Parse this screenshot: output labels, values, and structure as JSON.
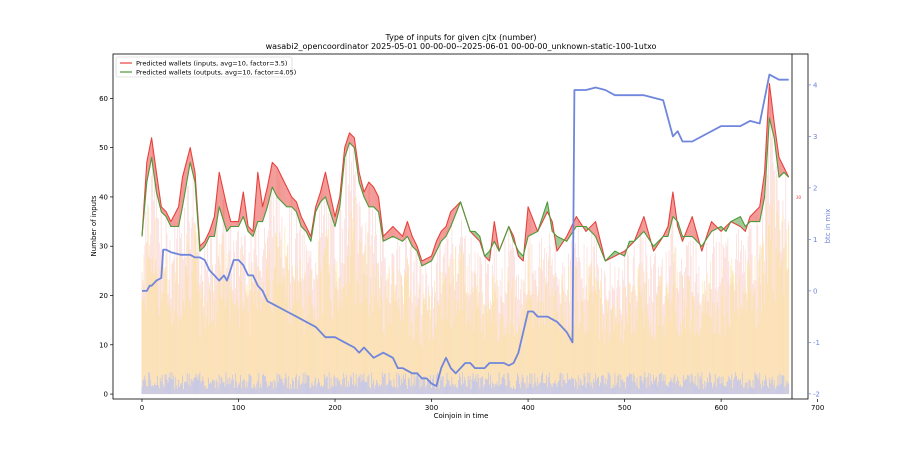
{
  "chart_data": {
    "type": "line",
    "title": "Type of inputs for given cjtx (number)",
    "subtitle": "wasabi2_opencoordinator 2025-05-01 00-00-00--2025-06-01 00-00-00_unknown-static-100-1utxo",
    "xlabel": "Coinjoin in time",
    "ylabel": "Number of inputs",
    "y2label": "btc in mix",
    "xlim": [
      -30,
      690
    ],
    "ylim": [
      -1,
      69
    ],
    "y2lim": [
      -2.1,
      4.6
    ],
    "xticks": [
      0,
      100,
      200,
      300,
      400,
      500,
      600,
      700
    ],
    "yticks": [
      0,
      10,
      20,
      30,
      40,
      50,
      60
    ],
    "y2ticks": [
      -2,
      -1,
      0,
      1,
      2,
      3,
      4
    ],
    "legend_position": "top-left",
    "right_marker": "30",
    "colors": {
      "inputs": "#e8413c",
      "outputs": "#4c9a3a",
      "btc": "#6f86dc",
      "bars_pink": "#f7c6c2",
      "bars_yellow": "#fbe08a",
      "bars_blue": "#b7c0f5"
    },
    "series": [
      {
        "name": "Predicted wallets (inputs, avg=10, factor=3.5)",
        "x": [
          0,
          5,
          10,
          15,
          20,
          25,
          30,
          38,
          42,
          50,
          55,
          60,
          65,
          70,
          75,
          80,
          88,
          92,
          100,
          105,
          110,
          115,
          120,
          125,
          130,
          135,
          140,
          145,
          150,
          155,
          160,
          165,
          170,
          175,
          180,
          185,
          190,
          200,
          205,
          210,
          215,
          220,
          225,
          230,
          235,
          240,
          245,
          250,
          260,
          270,
          275,
          280,
          285,
          290,
          300,
          305,
          310,
          315,
          320,
          330,
          340,
          345,
          350,
          355,
          360,
          365,
          370,
          380,
          385,
          390,
          395,
          400,
          410,
          420,
          425,
          430,
          440,
          450,
          460,
          470,
          480,
          490,
          500,
          505,
          510,
          520,
          530,
          540,
          545,
          550,
          555,
          560,
          570,
          580,
          590,
          600,
          605,
          610,
          620,
          625,
          630,
          640,
          645,
          650,
          655,
          660,
          665,
          670
        ],
        "values": [
          32,
          47,
          52,
          45,
          38,
          37,
          35,
          38,
          44,
          50,
          45,
          30,
          31,
          33,
          36,
          45,
          38,
          35,
          35,
          41,
          34,
          33,
          45,
          38,
          42,
          47,
          46,
          44,
          42,
          40,
          39,
          36,
          34,
          32,
          38,
          41,
          45,
          36,
          40,
          50,
          53,
          52,
          45,
          41,
          43,
          42,
          40,
          32,
          34,
          32,
          35,
          32,
          30,
          27,
          28,
          31,
          33,
          34,
          37,
          39,
          33,
          32,
          31,
          28,
          27,
          35,
          29,
          34,
          32,
          28,
          27,
          38,
          33,
          37,
          35,
          29,
          32,
          36,
          33,
          35,
          27,
          28,
          29,
          30,
          31,
          36,
          29,
          32,
          34,
          41,
          34,
          31,
          36,
          29,
          35,
          33,
          34,
          35,
          34,
          33,
          36,
          38,
          45,
          63,
          55,
          48,
          46,
          44
        ]
      },
      {
        "name": "Predicted wallets (outputs, avg=10, factor=4.05)",
        "x": [
          0,
          5,
          10,
          15,
          20,
          25,
          30,
          38,
          42,
          50,
          55,
          60,
          65,
          70,
          75,
          80,
          88,
          92,
          100,
          105,
          110,
          115,
          120,
          125,
          130,
          135,
          140,
          145,
          150,
          155,
          160,
          165,
          170,
          175,
          180,
          185,
          190,
          200,
          205,
          210,
          215,
          220,
          225,
          230,
          235,
          240,
          245,
          250,
          260,
          270,
          275,
          280,
          285,
          290,
          300,
          305,
          310,
          315,
          320,
          330,
          340,
          345,
          350,
          355,
          360,
          365,
          370,
          380,
          385,
          390,
          395,
          400,
          410,
          420,
          425,
          430,
          440,
          450,
          460,
          470,
          480,
          490,
          500,
          505,
          510,
          520,
          530,
          540,
          545,
          550,
          555,
          560,
          570,
          580,
          590,
          600,
          605,
          610,
          620,
          625,
          630,
          640,
          645,
          650,
          655,
          660,
          665,
          670
        ],
        "values": [
          32,
          43,
          48,
          41,
          37,
          36,
          34,
          34,
          38,
          47,
          43,
          29,
          30,
          32,
          32,
          38,
          33,
          34,
          34,
          36,
          33,
          32,
          35,
          35,
          38,
          42,
          40,
          39,
          38,
          38,
          37,
          34,
          33,
          31,
          37,
          39,
          40,
          34,
          38,
          48,
          51,
          50,
          43,
          40,
          38,
          38,
          37,
          31,
          32,
          31,
          32,
          30,
          29,
          26,
          27,
          29,
          31,
          32,
          34,
          39,
          33,
          33,
          32,
          28,
          29,
          31,
          29,
          34,
          31,
          29,
          28,
          32,
          33,
          39,
          33,
          32,
          31,
          34,
          34,
          32,
          27,
          29,
          28,
          31,
          31,
          33,
          30,
          32,
          32,
          36,
          35,
          32,
          32,
          30,
          33,
          34,
          33,
          35,
          36,
          34,
          35,
          35,
          40,
          56,
          52,
          44,
          45,
          44
        ]
      },
      {
        "name": "btc in mix",
        "axis": "right",
        "x": [
          0,
          5,
          8,
          10,
          15,
          20,
          22,
          25,
          30,
          40,
          50,
          55,
          60,
          65,
          70,
          75,
          80,
          85,
          88,
          90,
          95,
          100,
          105,
          110,
          115,
          120,
          125,
          130,
          140,
          150,
          160,
          170,
          180,
          190,
          200,
          210,
          220,
          225,
          230,
          240,
          250,
          260,
          265,
          270,
          280,
          285,
          290,
          295,
          300,
          305,
          310,
          315,
          320,
          325,
          330,
          335,
          340,
          345,
          350,
          355,
          360,
          365,
          370,
          375,
          380,
          385,
          390,
          400,
          405,
          410,
          420,
          430,
          440,
          446,
          448,
          460,
          470,
          480,
          490,
          500,
          510,
          520,
          530,
          540,
          550,
          555,
          560,
          570,
          600,
          610,
          620,
          630,
          640,
          650,
          660,
          670
        ],
        "values": [
          0,
          0,
          0.1,
          0.1,
          0.2,
          0.25,
          0.8,
          0.8,
          0.75,
          0.7,
          0.7,
          0.65,
          0.65,
          0.6,
          0.4,
          0.3,
          0.2,
          0.3,
          0.2,
          0.3,
          0.6,
          0.6,
          0.5,
          0.3,
          0.3,
          0.1,
          0.0,
          -0.2,
          -0.3,
          -0.4,
          -0.5,
          -0.6,
          -0.7,
          -0.9,
          -0.9,
          -1.0,
          -1.1,
          -1.2,
          -1.1,
          -1.3,
          -1.2,
          -1.3,
          -1.5,
          -1.5,
          -1.6,
          -1.6,
          -1.7,
          -1.7,
          -1.8,
          -1.85,
          -1.5,
          -1.3,
          -1.5,
          -1.6,
          -1.5,
          -1.4,
          -1.4,
          -1.5,
          -1.5,
          -1.5,
          -1.4,
          -1.4,
          -1.4,
          -1.4,
          -1.45,
          -1.4,
          -1.2,
          -0.4,
          -0.4,
          -0.5,
          -0.5,
          -0.6,
          -0.8,
          -1.0,
          3.9,
          3.9,
          3.95,
          3.9,
          3.8,
          3.8,
          3.8,
          3.8,
          3.75,
          3.7,
          3.0,
          3.1,
          2.9,
          2.9,
          3.2,
          3.2,
          3.2,
          3.3,
          3.25,
          4.2,
          4.1,
          4.1
        ]
      }
    ]
  }
}
